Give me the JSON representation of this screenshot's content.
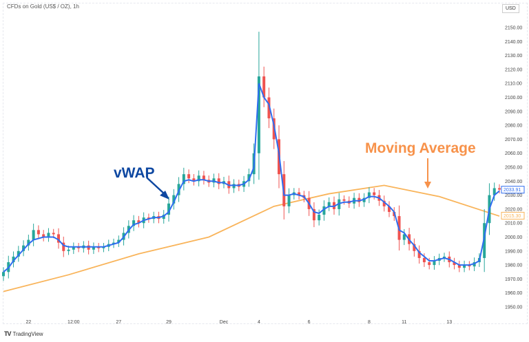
{
  "header": {
    "title": "CFDs on Gold (US$ / OZ), 1h",
    "currency": "USD"
  },
  "footer": {
    "brand": "TradingView",
    "brand_logo": "TV"
  },
  "chart_data": {
    "type": "candlestick",
    "title": "CFDs on Gold (US$ / OZ), 1h",
    "ylim": [
      1945,
      2155
    ],
    "y_ticks": [
      1950,
      1960,
      1970,
      1980,
      1990,
      2000,
      2010,
      2020,
      2030,
      2040,
      2050,
      2060,
      2070,
      2080,
      2090,
      2100,
      2110,
      2120,
      2130,
      2140,
      2150
    ],
    "x_ticks": [
      {
        "bar": 5,
        "label": "22"
      },
      {
        "bar": 14,
        "label": "12:00"
      },
      {
        "bar": 23,
        "label": "27"
      },
      {
        "bar": 33,
        "label": "29"
      },
      {
        "bar": 44,
        "label": "Dec"
      },
      {
        "bar": 51,
        "label": "4"
      },
      {
        "bar": 61,
        "label": "6"
      },
      {
        "bar": 73,
        "label": "8"
      },
      {
        "bar": 80,
        "label": "11"
      },
      {
        "bar": 89,
        "label": "13"
      }
    ],
    "close": [
      1975,
      1982,
      1986,
      1990,
      1994,
      1998,
      2005,
      2002,
      2000,
      2003,
      2002,
      1996,
      1990,
      1991,
      1993,
      1992,
      1994,
      1991,
      1993,
      1992,
      1993,
      1995,
      1996,
      1998,
      2003,
      2008,
      2012,
      2010,
      2014,
      2013,
      2015,
      2013,
      2016,
      2024,
      2030,
      2038,
      2045,
      2042,
      2040,
      2044,
      2041,
      2039,
      2042,
      2038,
      2040,
      2035,
      2038,
      2036,
      2040,
      2045,
      2060,
      2115,
      2100,
      2085,
      2070,
      2045,
      2022,
      2030,
      2032,
      2030,
      2028,
      2020,
      2012,
      2016,
      2022,
      2025,
      2020,
      2027,
      2026,
      2024,
      2028,
      2025,
      2028,
      2032,
      2030,
      2026,
      2022,
      2018,
      2015,
      1998,
      2002,
      1995,
      1990,
      1985,
      1982,
      1980,
      1983,
      1985,
      1986,
      1982,
      1980,
      1978,
      1980,
      1979,
      1982,
      1985,
      2010,
      2030,
      2035,
      2034
    ],
    "peak_high": 2147,
    "series": [
      {
        "name": "vWAP",
        "color": "#2f6df0",
        "values": [
          1975,
          1978,
          1983,
          1987,
          1991,
          1995,
          1998,
          1999,
          2000,
          2000,
          2000,
          1998,
          1994,
          1993,
          1993,
          1993,
          1993,
          1993,
          1993,
          1993,
          1993,
          1994,
          1995,
          1996,
          2000,
          2005,
          2009,
          2010,
          2012,
          2013,
          2014,
          2014,
          2015,
          2018,
          2025,
          2033,
          2040,
          2041,
          2040,
          2041,
          2041,
          2040,
          2040,
          2039,
          2039,
          2037,
          2037,
          2037,
          2038,
          2041,
          2050,
          2110,
          2100,
          2095,
          2080,
          2060,
          2030,
          2030,
          2031,
          2030,
          2029,
          2024,
          2018,
          2017,
          2020,
          2022,
          2022,
          2024,
          2025,
          2025,
          2026,
          2026,
          2027,
          2029,
          2029,
          2028,
          2025,
          2022,
          2018,
          2005,
          2003,
          1998,
          1994,
          1989,
          1986,
          1983,
          1983,
          1984,
          1985,
          1984,
          1982,
          1980,
          1980,
          1980,
          1981,
          1983,
          2000,
          2020,
          2030,
          2033
        ]
      },
      {
        "name": "Moving Average",
        "color": "#f9b45a",
        "bars": [
          0,
          13,
          27,
          41,
          54,
          65,
          76,
          87,
          99
        ],
        "values": [
          1961,
          1973,
          1988,
          2000,
          2022,
          2031,
          2037,
          2029,
          2015
        ]
      }
    ],
    "up_color": "#26a69a",
    "down_color": "#ef5350",
    "price_labels": [
      {
        "value": "2033.91",
        "color": "#2f6df0"
      },
      {
        "value": "2015.30",
        "color": "#f9b45a"
      }
    ],
    "annotations": [
      {
        "text": "vWAP",
        "color": "#0d47a1"
      },
      {
        "text": "Moving Average",
        "color": "#f7924a"
      }
    ]
  }
}
